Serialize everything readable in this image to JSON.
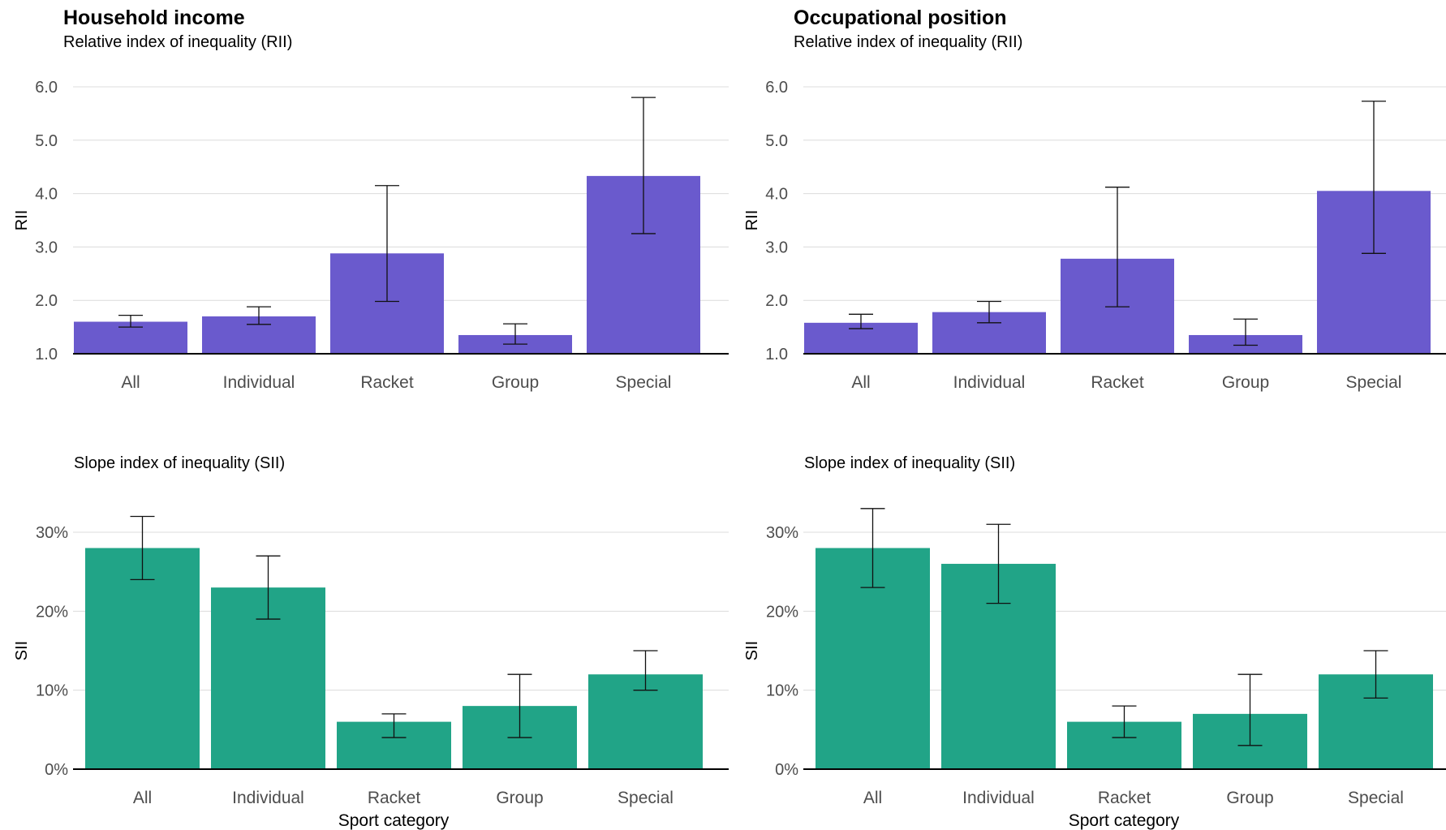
{
  "chart_data": [
    {
      "type": "bar",
      "title": "Household income",
      "subtitle": "Relative index of inequality (RII)",
      "ylabel": "RII",
      "xlabel": "",
      "categories": [
        "All",
        "Individual",
        "Racket",
        "Group",
        "Special"
      ],
      "values": [
        1.6,
        1.7,
        2.88,
        1.35,
        4.33
      ],
      "error_low": [
        1.5,
        1.55,
        1.98,
        1.18,
        3.25
      ],
      "error_high": [
        1.72,
        1.88,
        4.15,
        1.56,
        5.8
      ],
      "ylim": [
        1.0,
        6.0
      ],
      "yticks": [
        "1.0",
        "2.0",
        "3.0",
        "4.0",
        "5.0",
        "6.0"
      ],
      "baseline": 1.0,
      "color": "#6a5acd",
      "grid": true
    },
    {
      "type": "bar",
      "title": "Occupational position",
      "subtitle": "Relative index of inequality (RII)",
      "ylabel": "RII",
      "xlabel": "",
      "categories": [
        "All",
        "Individual",
        "Racket",
        "Group",
        "Special"
      ],
      "values": [
        1.58,
        1.78,
        2.78,
        1.35,
        4.05
      ],
      "error_low": [
        1.47,
        1.58,
        1.88,
        1.16,
        2.88
      ],
      "error_high": [
        1.74,
        1.98,
        4.12,
        1.65,
        5.73
      ],
      "ylim": [
        1.0,
        6.0
      ],
      "yticks": [
        "1.0",
        "2.0",
        "3.0",
        "4.0",
        "5.0",
        "6.0"
      ],
      "baseline": 1.0,
      "color": "#6a5acd",
      "grid": true
    },
    {
      "type": "bar",
      "title": "",
      "subtitle": "Slope index of inequality (SII)",
      "ylabel": "SII",
      "xlabel": "Sport category",
      "categories": [
        "All",
        "Individual",
        "Racket",
        "Group",
        "Special"
      ],
      "values": [
        28,
        23,
        6,
        8,
        12
      ],
      "error_low": [
        24,
        19,
        4,
        4,
        10
      ],
      "error_high": [
        32,
        27,
        7,
        12,
        15
      ],
      "ylim": [
        0,
        30
      ],
      "yticks": [
        "0%",
        "10%",
        "20%",
        "30%"
      ],
      "baseline": 0,
      "color": "#21a487",
      "grid": true
    },
    {
      "type": "bar",
      "title": "",
      "subtitle": "Slope index of inequality (SII)",
      "ylabel": "SII",
      "xlabel": "Sport category",
      "categories": [
        "All",
        "Individual",
        "Racket",
        "Group",
        "Special"
      ],
      "values": [
        28,
        26,
        6,
        7,
        12
      ],
      "error_low": [
        23,
        21,
        4,
        3,
        9
      ],
      "error_high": [
        33,
        31,
        8,
        12,
        15
      ],
      "ylim": [
        0,
        30
      ],
      "yticks": [
        "0%",
        "10%",
        "20%",
        "30%"
      ],
      "baseline": 0,
      "color": "#21a487",
      "grid": true
    }
  ]
}
